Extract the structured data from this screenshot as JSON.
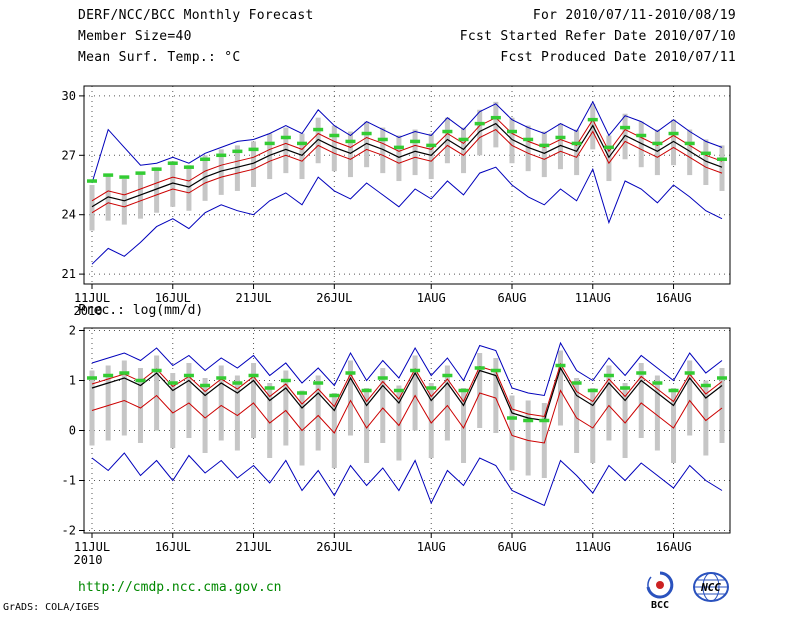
{
  "header": {
    "title": "DERF/NCC/BCC Monthly Forecast",
    "member_size": "Member Size=40",
    "for_range": "For 2010/07/11-2010/08/19",
    "fcst_started": "Fcst Started Refer Date 2010/07/10",
    "fcst_produced": "Fcst Produced Date 2010/07/11"
  },
  "footer": {
    "url": "http://cmdp.ncc.cma.gov.cn",
    "credit": "GrADS: COLA/IGES",
    "bcc_logo_label": "BCC",
    "ncc_logo_label": "NCC"
  },
  "colors": {
    "blue_line": "#0000bb",
    "red_line": "#cc0000",
    "black_line": "#000000",
    "green_marker": "#33cc33",
    "bar_gray": "#c6c6c6",
    "url_green": "#008800"
  },
  "chart_data": [
    {
      "type": "line",
      "title": "Mean Surf. Temp.: °C",
      "n": 40,
      "x_tick_labels": [
        "11JUL",
        "16JUL",
        "21JUL",
        "26JUL",
        "1AUG",
        "6AUG",
        "11AUG",
        "16AUG"
      ],
      "x_tick_index": [
        0,
        5,
        10,
        15,
        21,
        26,
        31,
        36
      ],
      "x_year": "2010",
      "yticks": [
        21,
        24,
        27,
        30
      ],
      "yrange": [
        20.5,
        30.5
      ],
      "bars": {
        "color": "#c6c6c6",
        "low": [
          23.2,
          23.7,
          23.5,
          23.8,
          24.1,
          24.4,
          24.2,
          24.7,
          25.0,
          25.2,
          25.4,
          25.8,
          26.1,
          25.8,
          26.6,
          26.2,
          25.9,
          26.4,
          26.1,
          25.7,
          26.0,
          25.8,
          26.6,
          26.1,
          27.0,
          27.4,
          26.6,
          26.2,
          25.9,
          26.3,
          26.0,
          27.3,
          25.7,
          26.8,
          26.4,
          26.0,
          26.5,
          26.0,
          25.5,
          25.2
        ],
        "high": [
          25.5,
          26.0,
          25.8,
          26.1,
          26.4,
          26.7,
          26.5,
          27.0,
          27.3,
          27.5,
          27.7,
          28.1,
          28.4,
          28.1,
          28.9,
          28.5,
          28.2,
          28.7,
          28.4,
          28.0,
          28.3,
          28.1,
          28.9,
          28.4,
          29.3,
          29.7,
          28.9,
          28.5,
          28.2,
          28.6,
          28.3,
          29.6,
          28.0,
          29.1,
          28.7,
          28.3,
          28.8,
          28.3,
          27.8,
          27.5
        ]
      },
      "series": [
        {
          "name": "ensemble-max",
          "color": "#0000bb",
          "style": "line",
          "width": 1,
          "values": [
            25.6,
            28.3,
            27.4,
            26.5,
            26.6,
            26.9,
            26.6,
            27.1,
            27.4,
            27.7,
            27.8,
            28.1,
            28.5,
            28.1,
            29.3,
            28.5,
            28.0,
            28.7,
            28.3,
            27.9,
            28.2,
            28.0,
            28.9,
            28.3,
            29.2,
            29.6,
            28.8,
            28.4,
            28.1,
            28.6,
            28.2,
            29.7,
            28.0,
            29.0,
            28.7,
            28.2,
            28.8,
            28.2,
            27.7,
            27.4
          ]
        },
        {
          "name": "ensemble-min",
          "color": "#0000bb",
          "style": "line",
          "width": 1,
          "values": [
            21.5,
            22.3,
            21.9,
            22.6,
            23.4,
            23.8,
            23.3,
            24.1,
            24.5,
            24.2,
            24.0,
            24.7,
            25.1,
            24.5,
            25.9,
            25.2,
            24.8,
            25.6,
            25.0,
            24.4,
            25.3,
            24.8,
            25.7,
            25.0,
            26.1,
            26.4,
            25.5,
            24.9,
            24.5,
            25.3,
            24.7,
            26.3,
            23.6,
            25.7,
            25.3,
            24.6,
            25.5,
            24.9,
            24.2,
            23.8
          ]
        },
        {
          "name": "upper-quartile",
          "color": "#cc0000",
          "style": "line",
          "width": 1,
          "values": [
            24.7,
            25.2,
            25.0,
            25.3,
            25.6,
            25.9,
            25.7,
            26.2,
            26.5,
            26.7,
            26.9,
            27.3,
            27.6,
            27.3,
            28.1,
            27.7,
            27.4,
            27.9,
            27.6,
            27.2,
            27.5,
            27.3,
            28.1,
            27.6,
            28.5,
            28.9,
            28.1,
            27.7,
            27.4,
            27.8,
            27.5,
            28.8,
            27.2,
            28.3,
            27.9,
            27.5,
            28.0,
            27.5,
            27.0,
            26.7
          ]
        },
        {
          "name": "lower-quartile",
          "color": "#cc0000",
          "style": "line",
          "width": 1,
          "values": [
            24.1,
            24.6,
            24.4,
            24.7,
            25.0,
            25.3,
            25.1,
            25.6,
            25.9,
            26.1,
            26.3,
            26.7,
            27.0,
            26.7,
            27.5,
            27.1,
            26.8,
            27.3,
            27.0,
            26.6,
            26.9,
            26.7,
            27.5,
            27.0,
            27.9,
            28.3,
            27.5,
            27.1,
            26.8,
            27.2,
            26.9,
            28.2,
            26.6,
            27.7,
            27.3,
            26.9,
            27.4,
            26.9,
            26.4,
            26.1
          ]
        },
        {
          "name": "ensemble-mean",
          "color": "#000000",
          "style": "line",
          "width": 1.2,
          "values": [
            24.4,
            24.9,
            24.7,
            25.0,
            25.3,
            25.6,
            25.4,
            25.9,
            26.2,
            26.4,
            26.6,
            27.0,
            27.3,
            27.0,
            27.8,
            27.4,
            27.1,
            27.6,
            27.3,
            26.9,
            27.2,
            27.0,
            27.8,
            27.3,
            28.2,
            28.6,
            27.8,
            27.4,
            27.1,
            27.5,
            27.2,
            28.5,
            26.9,
            28.0,
            27.6,
            27.2,
            27.7,
            27.2,
            26.7,
            26.4
          ]
        },
        {
          "name": "observation-marker",
          "color": "#33cc33",
          "style": "dash",
          "values": [
            25.7,
            26.0,
            25.9,
            26.1,
            26.3,
            26.6,
            26.4,
            26.8,
            27.0,
            27.2,
            27.3,
            27.6,
            27.9,
            27.6,
            28.3,
            28.0,
            27.7,
            28.1,
            27.8,
            27.4,
            27.7,
            27.5,
            28.2,
            27.8,
            28.6,
            28.9,
            28.2,
            27.8,
            27.5,
            27.9,
            27.6,
            28.8,
            27.4,
            28.4,
            28.0,
            27.6,
            28.1,
            27.6,
            27.1,
            26.8
          ]
        }
      ]
    },
    {
      "type": "line",
      "title": "Prec.: log(mm/d)",
      "n": 40,
      "x_tick_labels": [
        "11JUL",
        "16JUL",
        "21JUL",
        "26JUL",
        "1AUG",
        "6AUG",
        "11AUG",
        "16AUG"
      ],
      "x_tick_index": [
        0,
        5,
        10,
        15,
        21,
        26,
        31,
        36
      ],
      "x_year": "2010",
      "yticks": [
        -2,
        -1,
        0,
        1,
        2
      ],
      "yrange": [
        -2.05,
        2.05
      ],
      "bars": {
        "color": "#c6c6c6",
        "low": [
          -0.3,
          -0.2,
          -0.1,
          -0.25,
          0.0,
          -0.35,
          -0.15,
          -0.45,
          -0.2,
          -0.4,
          -0.15,
          -0.55,
          -0.3,
          -0.7,
          -0.4,
          -0.75,
          -0.1,
          -0.65,
          -0.25,
          -0.6,
          0.0,
          -0.55,
          -0.2,
          -0.65,
          0.05,
          -0.05,
          -0.8,
          -0.9,
          -0.95,
          0.1,
          -0.45,
          -0.65,
          -0.2,
          -0.55,
          -0.15,
          -0.4,
          -0.65,
          -0.1,
          -0.5,
          -0.25
        ],
        "high": [
          1.2,
          1.3,
          1.4,
          1.25,
          1.5,
          1.15,
          1.35,
          1.05,
          1.3,
          1.1,
          1.35,
          0.95,
          1.2,
          0.8,
          1.1,
          0.75,
          1.4,
          0.85,
          1.25,
          0.9,
          1.5,
          0.95,
          1.3,
          0.85,
          1.55,
          1.45,
          0.7,
          0.6,
          0.55,
          1.6,
          1.05,
          0.85,
          1.3,
          0.95,
          1.35,
          1.1,
          0.85,
          1.4,
          1.0,
          1.25
        ]
      },
      "series": [
        {
          "name": "ensemble-max",
          "color": "#0000bb",
          "style": "line",
          "width": 1,
          "values": [
            1.35,
            1.45,
            1.55,
            1.4,
            1.65,
            1.3,
            1.5,
            1.2,
            1.45,
            1.25,
            1.5,
            1.1,
            1.35,
            0.95,
            1.25,
            0.9,
            1.55,
            1.0,
            1.4,
            1.05,
            1.65,
            1.1,
            1.45,
            1.0,
            1.7,
            1.6,
            0.85,
            0.75,
            0.7,
            1.75,
            1.2,
            1.0,
            1.45,
            1.1,
            1.5,
            1.25,
            1.0,
            1.55,
            1.15,
            1.4
          ]
        },
        {
          "name": "ensemble-min",
          "color": "#0000bb",
          "style": "line",
          "width": 1,
          "values": [
            -0.55,
            -0.8,
            -0.45,
            -0.9,
            -0.6,
            -1.0,
            -0.5,
            -0.85,
            -0.6,
            -0.95,
            -0.7,
            -1.05,
            -0.6,
            -1.2,
            -0.8,
            -1.3,
            -0.7,
            -1.1,
            -0.75,
            -1.2,
            -0.6,
            -1.45,
            -0.8,
            -1.1,
            -0.55,
            -0.7,
            -1.2,
            -1.35,
            -1.5,
            -0.6,
            -0.9,
            -1.25,
            -0.7,
            -1.0,
            -0.65,
            -0.9,
            -1.15,
            -0.7,
            -1.0,
            -1.2
          ]
        },
        {
          "name": "upper-quartile",
          "color": "#cc0000",
          "style": "line",
          "width": 1,
          "values": [
            0.93,
            1.03,
            1.13,
            0.98,
            1.23,
            0.88,
            1.08,
            0.78,
            1.03,
            0.83,
            1.08,
            0.68,
            0.93,
            0.53,
            0.83,
            0.48,
            1.13,
            0.58,
            0.98,
            0.63,
            1.23,
            0.68,
            1.03,
            0.58,
            1.28,
            1.18,
            0.43,
            0.33,
            0.28,
            1.33,
            0.78,
            0.58,
            1.03,
            0.68,
            1.08,
            0.83,
            0.58,
            1.13,
            0.73,
            0.98
          ]
        },
        {
          "name": "lower-quartile",
          "color": "#cc0000",
          "style": "line",
          "width": 1,
          "values": [
            0.4,
            0.5,
            0.6,
            0.45,
            0.7,
            0.35,
            0.55,
            0.25,
            0.5,
            0.3,
            0.55,
            0.15,
            0.4,
            0.0,
            0.3,
            -0.05,
            0.6,
            0.05,
            0.45,
            0.1,
            0.7,
            0.15,
            0.5,
            0.05,
            0.75,
            0.65,
            -0.1,
            -0.2,
            -0.25,
            0.8,
            0.25,
            0.05,
            0.5,
            0.15,
            0.55,
            0.3,
            0.05,
            0.6,
            0.2,
            0.45
          ]
        },
        {
          "name": "ensemble-mean",
          "color": "#000000",
          "style": "line",
          "width": 1.2,
          "values": [
            0.85,
            0.95,
            1.05,
            0.9,
            1.15,
            0.8,
            1.0,
            0.7,
            0.95,
            0.75,
            1.0,
            0.6,
            0.85,
            0.45,
            0.75,
            0.4,
            1.05,
            0.5,
            0.9,
            0.55,
            1.15,
            0.6,
            0.95,
            0.5,
            1.2,
            1.1,
            0.35,
            0.25,
            0.2,
            1.25,
            0.7,
            0.5,
            0.95,
            0.6,
            1.0,
            0.75,
            0.5,
            1.05,
            0.65,
            0.9
          ]
        },
        {
          "name": "observation-marker",
          "color": "#33cc33",
          "style": "dash",
          "values": [
            1.05,
            1.1,
            1.15,
            1.0,
            1.2,
            0.95,
            1.1,
            0.9,
            1.05,
            0.95,
            1.1,
            0.85,
            1.0,
            0.75,
            0.95,
            0.7,
            1.15,
            0.8,
            1.05,
            0.8,
            1.2,
            0.85,
            1.1,
            0.8,
            1.25,
            1.2,
            0.25,
            0.2,
            0.2,
            1.3,
            0.95,
            0.8,
            1.1,
            0.85,
            1.15,
            0.95,
            0.8,
            1.15,
            0.9,
            1.05
          ]
        }
      ]
    }
  ]
}
